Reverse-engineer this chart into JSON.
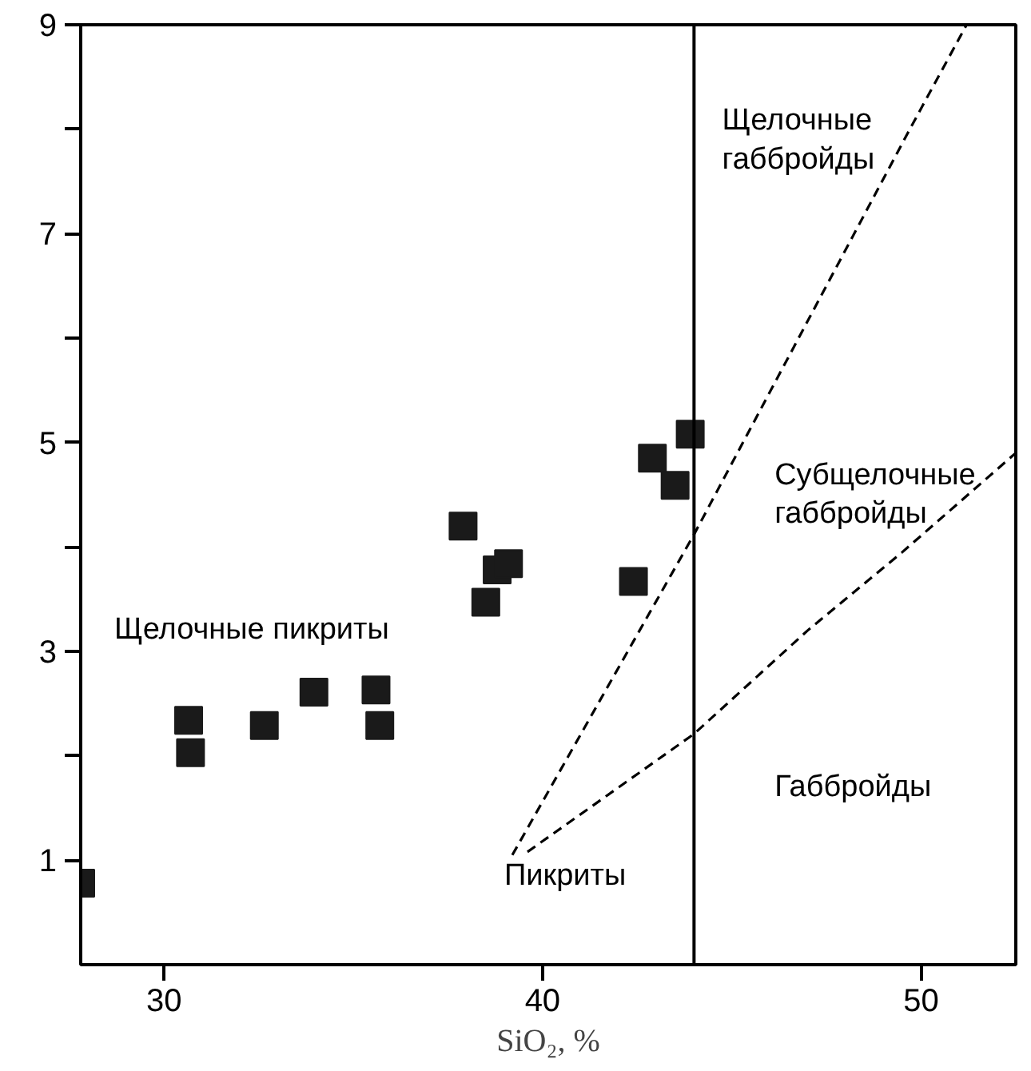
{
  "chart_data": {
    "type": "scatter",
    "xlabel": "SiO₂, %",
    "xlim": [
      27.8,
      52.5
    ],
    "ylim": [
      0,
      9
    ],
    "xticks": [
      30,
      40,
      50
    ],
    "yticks": [
      1,
      {
        "value": 2,
        "label": null
      },
      3,
      {
        "value": 4,
        "label": null
      },
      5,
      {
        "value": 6,
        "label": null
      },
      7,
      {
        "value": 8,
        "label": null
      },
      9
    ],
    "grid": false,
    "series": [
      {
        "marker": "square",
        "color": "#1a1a1a",
        "x": [
          27.8,
          30.65,
          30.7,
          32.65,
          33.96,
          35.6,
          35.7,
          37.9,
          38.8,
          39.1,
          38.5,
          42.4,
          42.9,
          43.5,
          43.9
        ],
        "values": [
          0.78,
          2.34,
          2.03,
          2.29,
          2.61,
          2.63,
          2.29,
          4.2,
          3.78,
          3.84,
          3.47,
          3.67,
          4.85,
          4.59,
          5.08
        ]
      },
      {
        "type": "line",
        "line_style": "dashed",
        "color": "#000000",
        "x": [
          39.2,
          44.0,
          49.7,
          51.2
        ],
        "values": [
          1.05,
          4.12,
          8.0,
          9.0
        ]
      },
      {
        "type": "line",
        "line_style": "dashed",
        "color": "#000000",
        "x": [
          39.6,
          44.0,
          47.0,
          49.5,
          52.5
        ],
        "values": [
          1.08,
          2.21,
          3.2,
          3.95,
          4.9
        ]
      }
    ],
    "ref_lines": [
      {
        "axis": "x",
        "value": 44,
        "color": "#000000",
        "line_style": "solid"
      }
    ],
    "annotations": [
      "Щелочные\nгаббройды",
      "Субщелочные\nгаббройды",
      "Щелочные пикриты",
      "Габбройды",
      "Пикриты"
    ]
  }
}
